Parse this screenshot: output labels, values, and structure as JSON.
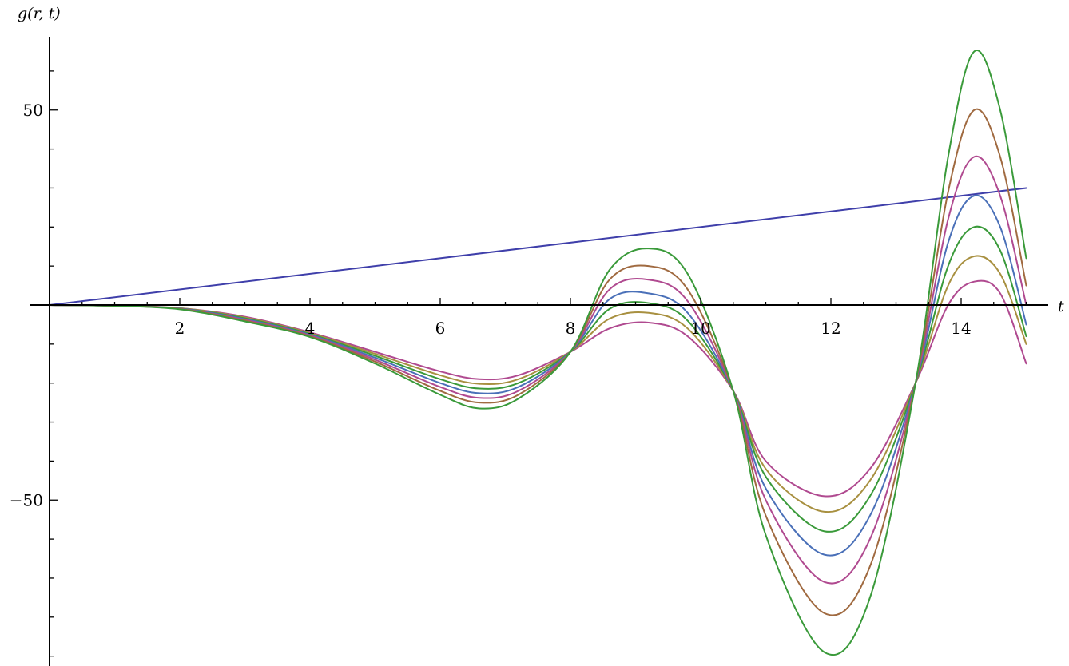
{
  "chart_data": {
    "type": "line",
    "xlabel": "t",
    "ylabel": "g(r, t)",
    "xlim": [
      0,
      15.3
    ],
    "ylim": [
      -92,
      70
    ],
    "x_ticks": [
      2,
      4,
      6,
      8,
      10,
      12,
      14
    ],
    "x_tick_labels": [
      "2",
      "4",
      "6",
      "8",
      "10",
      "12",
      "14"
    ],
    "y_ticks": [
      50,
      -50
    ],
    "y_tick_labels": [
      "50",
      "−50"
    ],
    "grid": false,
    "legend": "none",
    "series": [
      {
        "color": "#3f3faa",
        "points": [
          [
            0,
            0
          ],
          [
            15,
            30
          ]
        ]
      },
      {
        "color": "#b04a90",
        "points": [
          [
            0,
            0
          ],
          [
            1,
            -0.2
          ],
          [
            2,
            -0.8
          ],
          [
            3,
            -3
          ],
          [
            4,
            -7
          ],
          [
            5,
            -12
          ],
          [
            6,
            -17
          ],
          [
            6.6,
            -19
          ],
          [
            7.2,
            -18
          ],
          [
            8,
            -12
          ],
          [
            8.6,
            -6
          ],
          [
            9.2,
            -4.5
          ],
          [
            9.8,
            -8
          ],
          [
            10.5,
            -22
          ],
          [
            11,
            -40
          ],
          [
            11.9,
            -49
          ],
          [
            12.6,
            -42
          ],
          [
            13.3,
            -20
          ],
          [
            13.8,
            0
          ],
          [
            14.2,
            6
          ],
          [
            14.6,
            3
          ],
          [
            15,
            -15
          ]
        ]
      },
      {
        "color": "#a89040",
        "points": [
          [
            0,
            0
          ],
          [
            1,
            -0.2
          ],
          [
            2,
            -0.8
          ],
          [
            3,
            -3.2
          ],
          [
            4,
            -7.2
          ],
          [
            5,
            -12.5
          ],
          [
            6,
            -18
          ],
          [
            6.6,
            -20.2
          ],
          [
            7.2,
            -19
          ],
          [
            8,
            -12
          ],
          [
            8.6,
            -3.5
          ],
          [
            9.2,
            -2
          ],
          [
            9.8,
            -6
          ],
          [
            10.5,
            -22
          ],
          [
            11,
            -42
          ],
          [
            11.9,
            -53
          ],
          [
            12.6,
            -45
          ],
          [
            13.3,
            -20
          ],
          [
            13.8,
            5
          ],
          [
            14.2,
            12.5
          ],
          [
            14.6,
            8
          ],
          [
            15,
            -10
          ]
        ]
      },
      {
        "color": "#3a9a3a",
        "points": [
          [
            0,
            0
          ],
          [
            1,
            -0.2
          ],
          [
            2,
            -0.9
          ],
          [
            3,
            -3.4
          ],
          [
            4,
            -7.4
          ],
          [
            5,
            -13
          ],
          [
            6,
            -19
          ],
          [
            6.6,
            -21.4
          ],
          [
            7.2,
            -20
          ],
          [
            8,
            -12
          ],
          [
            8.6,
            -1
          ],
          [
            9.2,
            0.5
          ],
          [
            9.8,
            -4
          ],
          [
            10.5,
            -22
          ],
          [
            11,
            -44
          ],
          [
            11.9,
            -58
          ],
          [
            12.6,
            -49
          ],
          [
            13.3,
            -20
          ],
          [
            13.8,
            10
          ],
          [
            14.2,
            20
          ],
          [
            14.6,
            14
          ],
          [
            15,
            -8
          ]
        ]
      },
      {
        "color": "#4a70b8",
        "points": [
          [
            0,
            0
          ],
          [
            1,
            -0.2
          ],
          [
            2,
            -0.9
          ],
          [
            3,
            -3.6
          ],
          [
            4,
            -7.6
          ],
          [
            5,
            -13.5
          ],
          [
            6,
            -20
          ],
          [
            6.6,
            -22.6
          ],
          [
            7.2,
            -21
          ],
          [
            8,
            -12
          ],
          [
            8.6,
            1.5
          ],
          [
            9.2,
            3
          ],
          [
            9.8,
            -2
          ],
          [
            10.5,
            -22
          ],
          [
            11,
            -47
          ],
          [
            11.9,
            -64
          ],
          [
            12.6,
            -54
          ],
          [
            13.3,
            -20
          ],
          [
            13.8,
            16
          ],
          [
            14.2,
            28
          ],
          [
            14.6,
            20
          ],
          [
            15,
            -5
          ]
        ]
      },
      {
        "color": "#b04a90",
        "points": [
          [
            0,
            0
          ],
          [
            1,
            -0.2
          ],
          [
            2,
            -1
          ],
          [
            3,
            -3.8
          ],
          [
            4,
            -7.8
          ],
          [
            5,
            -14
          ],
          [
            6,
            -21
          ],
          [
            6.6,
            -23.8
          ],
          [
            7.2,
            -22
          ],
          [
            8,
            -12
          ],
          [
            8.6,
            4
          ],
          [
            9.2,
            6.5
          ],
          [
            9.8,
            1
          ],
          [
            10.5,
            -22
          ],
          [
            11,
            -50
          ],
          [
            11.9,
            -71
          ],
          [
            12.6,
            -60
          ],
          [
            13.3,
            -20
          ],
          [
            13.8,
            22
          ],
          [
            14.2,
            38
          ],
          [
            14.6,
            28
          ],
          [
            15,
            0
          ]
        ]
      },
      {
        "color": "#a06a40",
        "points": [
          [
            0,
            0
          ],
          [
            1,
            -0.2
          ],
          [
            2,
            -1
          ],
          [
            3,
            -4
          ],
          [
            4,
            -8
          ],
          [
            5,
            -14.5
          ],
          [
            6,
            -22
          ],
          [
            6.6,
            -25
          ],
          [
            7.2,
            -23
          ],
          [
            8,
            -12
          ],
          [
            8.6,
            6.5
          ],
          [
            9.2,
            10
          ],
          [
            9.8,
            4
          ],
          [
            10.5,
            -22
          ],
          [
            11,
            -54
          ],
          [
            11.9,
            -79
          ],
          [
            12.6,
            -67
          ],
          [
            13.3,
            -20
          ],
          [
            13.8,
            29
          ],
          [
            14.2,
            50
          ],
          [
            14.6,
            38
          ],
          [
            15,
            5
          ]
        ]
      },
      {
        "color": "#3a9a3a",
        "points": [
          [
            0,
            0
          ],
          [
            1,
            -0.2
          ],
          [
            2,
            -1.1
          ],
          [
            3,
            -4.2
          ],
          [
            4,
            -8.2
          ],
          [
            5,
            -15
          ],
          [
            6,
            -23
          ],
          [
            6.6,
            -26.5
          ],
          [
            7.2,
            -24
          ],
          [
            8,
            -12
          ],
          [
            8.6,
            9
          ],
          [
            9.2,
            14.5
          ],
          [
            9.8,
            8
          ],
          [
            10.5,
            -22
          ],
          [
            11,
            -59
          ],
          [
            11.9,
            -89
          ],
          [
            12.6,
            -75
          ],
          [
            13.3,
            -20
          ],
          [
            13.8,
            38
          ],
          [
            14.2,
            65
          ],
          [
            14.6,
            50
          ],
          [
            15,
            12
          ]
        ]
      }
    ]
  }
}
